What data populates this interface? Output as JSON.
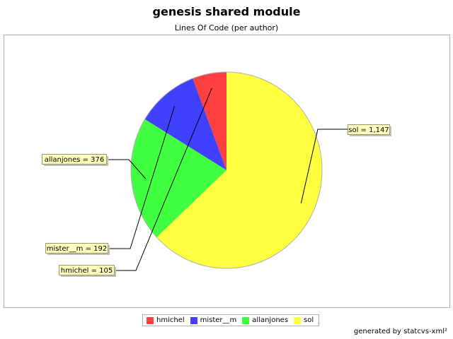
{
  "chart_data": {
    "type": "pie",
    "title": "genesis shared module",
    "subtitle": "Lines Of Code (per author)",
    "slices": [
      {
        "name": "hmichel",
        "value": 105,
        "label": "hmichel = 105",
        "color": "#ff4040"
      },
      {
        "name": "mister__m",
        "value": 192,
        "label": "mister__m = 192",
        "color": "#4040ff"
      },
      {
        "name": "allanjones",
        "value": 376,
        "label": "allanjones = 376",
        "color": "#40ff40"
      },
      {
        "name": "sol",
        "value": 1147,
        "label": "sol = 1,147",
        "color": "#ffff40"
      }
    ],
    "legend": {
      "position": "bottom"
    }
  },
  "footer": {
    "text": "generated by statcvs-xml²"
  }
}
